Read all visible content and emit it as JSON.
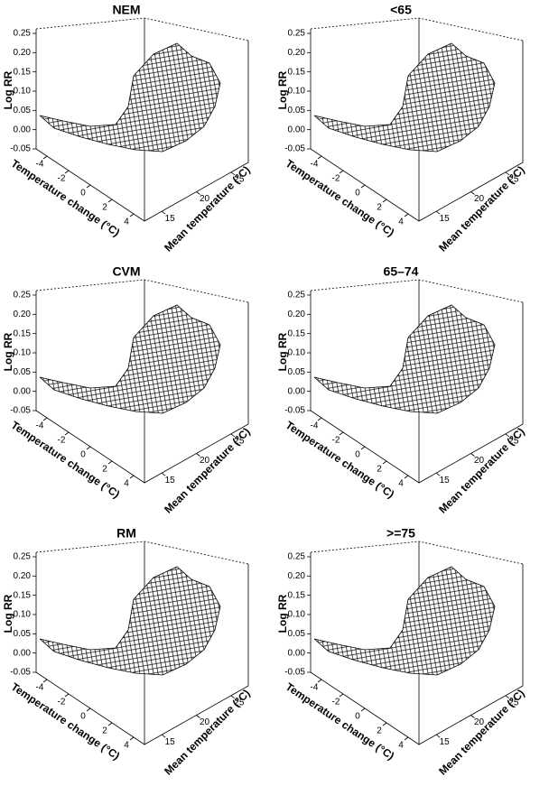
{
  "chart_data": [
    {
      "type": "surface",
      "title": "NEM",
      "xlabel": "Temperature change (°C)",
      "ylabel": "Mean temperature (°C)",
      "zlabel": "Log RR",
      "xlim": [
        -5,
        5
      ],
      "xticks": [
        -4,
        -2,
        0,
        2,
        4
      ],
      "ylim": [
        12.5,
        27.5
      ],
      "yticks": [
        15,
        20,
        25
      ],
      "zlim": [
        -0.05,
        0.25
      ],
      "zticks": [
        -0.05,
        {
          "value": 0,
          "label": "0.00"
        },
        0.05,
        {
          "value": 0.1,
          "label": "0.10"
        },
        0.15,
        {
          "value": 0.2,
          "label": "0.20"
        },
        0.25
      ]
    },
    {
      "type": "surface",
      "title": "<65",
      "xlabel": "Temperature change (°C)",
      "ylabel": "Mean temperature (°C)",
      "zlabel": "Log RR",
      "xlim": [
        -5,
        5
      ],
      "xticks": [
        -4,
        -2,
        0,
        2,
        4
      ],
      "ylim": [
        12.5,
        27.5
      ],
      "yticks": [
        15,
        20,
        25
      ],
      "zlim": [
        -0.05,
        0.25
      ],
      "zticks": [
        -0.05,
        {
          "value": 0,
          "label": "0.00"
        },
        0.05,
        {
          "value": 0.1,
          "label": "0.10"
        },
        0.15,
        {
          "value": 0.2,
          "label": "0.20"
        },
        0.25
      ]
    },
    {
      "type": "surface",
      "title": "CVM",
      "xlabel": "Temperature change (°C)",
      "ylabel": "Mean temperature (°C)",
      "zlabel": "Log RR",
      "xlim": [
        -5,
        5
      ],
      "xticks": [
        -4,
        -2,
        0,
        2,
        4
      ],
      "ylim": [
        12.5,
        27.5
      ],
      "yticks": [
        15,
        20,
        25
      ],
      "zlim": [
        -0.05,
        0.25
      ],
      "zticks": [
        -0.05,
        {
          "value": 0,
          "label": "0.00"
        },
        0.05,
        {
          "value": 0.1,
          "label": "0.10"
        },
        0.15,
        {
          "value": 0.2,
          "label": "0.20"
        },
        0.25
      ]
    },
    {
      "type": "surface",
      "title": "65–74",
      "xlabel": "Temperature change (°C)",
      "ylabel": "Mean temperature (°C)",
      "zlabel": "Log RR",
      "xlim": [
        -5,
        5
      ],
      "xticks": [
        -4,
        -2,
        0,
        2,
        4
      ],
      "ylim": [
        12.5,
        27.5
      ],
      "yticks": [
        15,
        20,
        25
      ],
      "zlim": [
        -0.05,
        0.25
      ],
      "zticks": [
        -0.05,
        {
          "value": 0,
          "label": "0.00"
        },
        0.05,
        {
          "value": 0.1,
          "label": "0.10"
        },
        0.15,
        {
          "value": 0.2,
          "label": "0.20"
        },
        0.25
      ]
    },
    {
      "type": "surface",
      "title": "RM",
      "xlabel": "Temperature change (°C)",
      "ylabel": "Mean temperature (°C)",
      "zlabel": "Log RR",
      "xlim": [
        -5,
        5
      ],
      "xticks": [
        -4,
        -2,
        0,
        2,
        4
      ],
      "ylim": [
        12.5,
        27.5
      ],
      "yticks": [
        15,
        20,
        25
      ],
      "zlim": [
        -0.05,
        0.25
      ],
      "zticks": [
        -0.05,
        {
          "value": 0,
          "label": "0.00"
        },
        0.05,
        {
          "value": 0.1,
          "label": "0.10"
        },
        0.15,
        {
          "value": 0.2,
          "label": "0.20"
        },
        0.25
      ]
    },
    {
      "type": "surface",
      "title": ">=75",
      "xlabel": "Temperature change (°C)",
      "ylabel": "Mean temperature (°C)",
      "zlabel": "Log RR",
      "xlim": [
        -5,
        5
      ],
      "xticks": [
        -4,
        -2,
        0,
        2,
        4
      ],
      "ylim": [
        12.5,
        27.5
      ],
      "yticks": [
        15,
        20,
        25
      ],
      "zlim": [
        -0.05,
        0.25
      ],
      "zticks": [
        -0.05,
        {
          "value": 0,
          "label": "0.00"
        },
        0.05,
        {
          "value": 0.1,
          "label": "0.10"
        },
        0.15,
        {
          "value": 0.2,
          "label": "0.20"
        },
        0.25
      ]
    }
  ]
}
